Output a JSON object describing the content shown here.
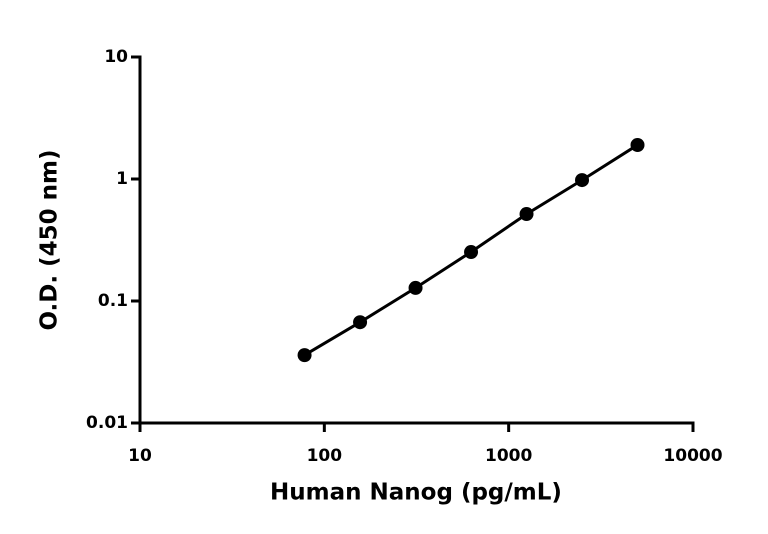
{
  "chart_data": {
    "type": "scatter",
    "x_label": "Human Nanog (pg/mL)",
    "y_label": "O.D. (450 nm)",
    "series": [
      {
        "color": "#000000",
        "x": [
          78.125,
          156.25,
          312.5,
          625,
          1250,
          2500,
          5000
        ],
        "values": [
          0.036,
          0.067,
          0.128,
          0.252,
          0.516,
          0.98,
          1.9
        ]
      }
    ],
    "xlim": [
      10,
      10000
    ],
    "xticks": [
      10,
      100,
      1000,
      10000
    ],
    "ylim": [
      0.01,
      10
    ],
    "yticks": [
      0.01,
      0.1,
      1,
      10
    ],
    "xscale": "log",
    "yscale": "log",
    "grid": false
  }
}
